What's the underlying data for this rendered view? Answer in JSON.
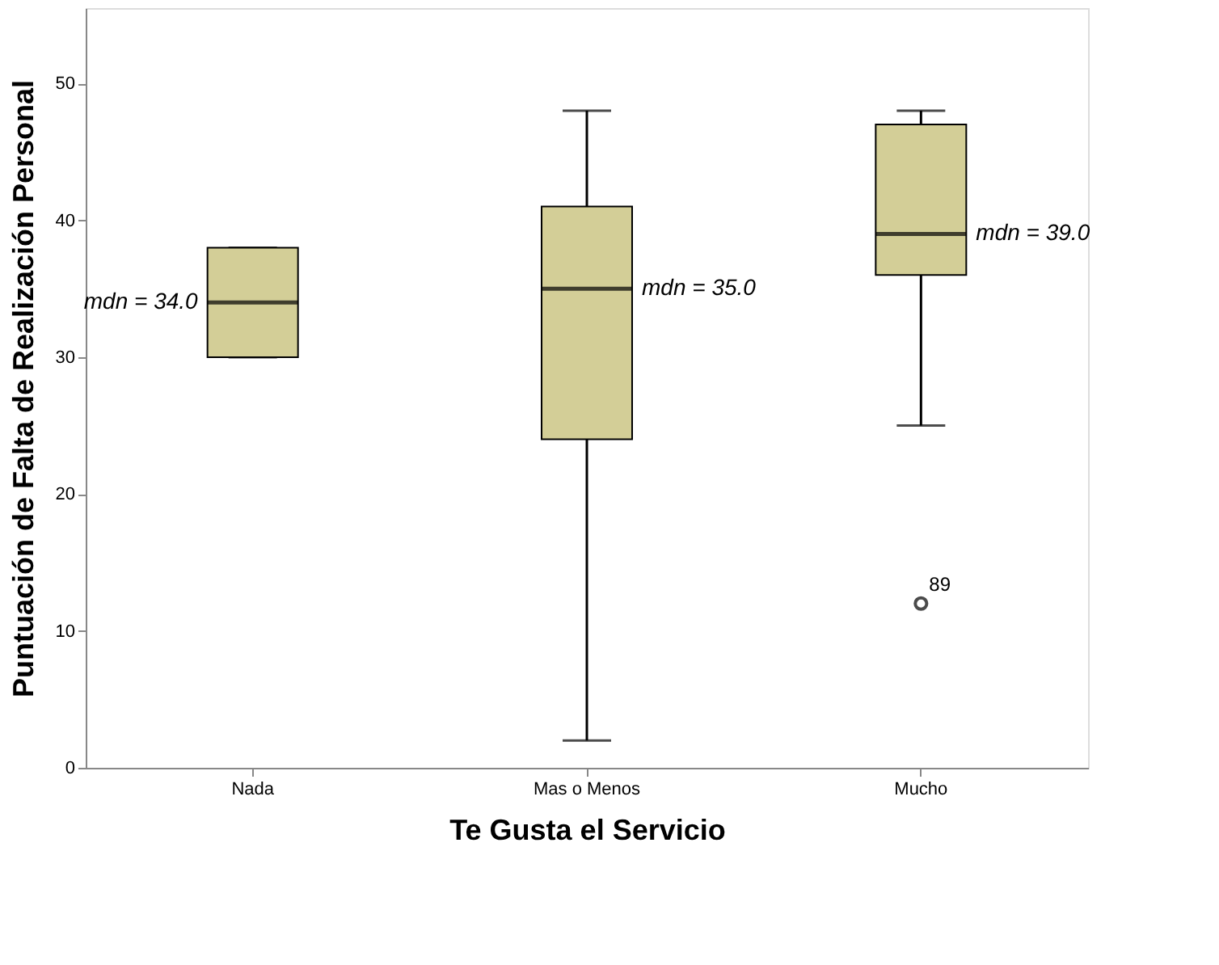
{
  "chart_data": {
    "type": "box",
    "xlabel": "Te Gusta el Servicio",
    "ylabel": "Puntuación de Falta de Realización Personal",
    "categories": [
      "Nada",
      "Mas o Menos",
      "Mucho"
    ],
    "boxes": [
      {
        "low": 30,
        "q1": 30,
        "median": 34,
        "q3": 38,
        "high": 38
      },
      {
        "low": 2,
        "q1": 24,
        "median": 35,
        "q3": 41,
        "high": 48
      },
      {
        "low": 25,
        "q1": 36,
        "median": 39,
        "q3": 47,
        "high": 48,
        "outliers": [
          12
        ]
      }
    ],
    "color": "#d3ce97",
    "ylim": [
      0,
      55.5
    ],
    "yticks": [
      0,
      10,
      20,
      30,
      40,
      50
    ],
    "grid": false,
    "annotations": [
      "mdn = 34.0",
      "mdn = 35.0",
      "mdn = 39.0",
      "89"
    ]
  }
}
